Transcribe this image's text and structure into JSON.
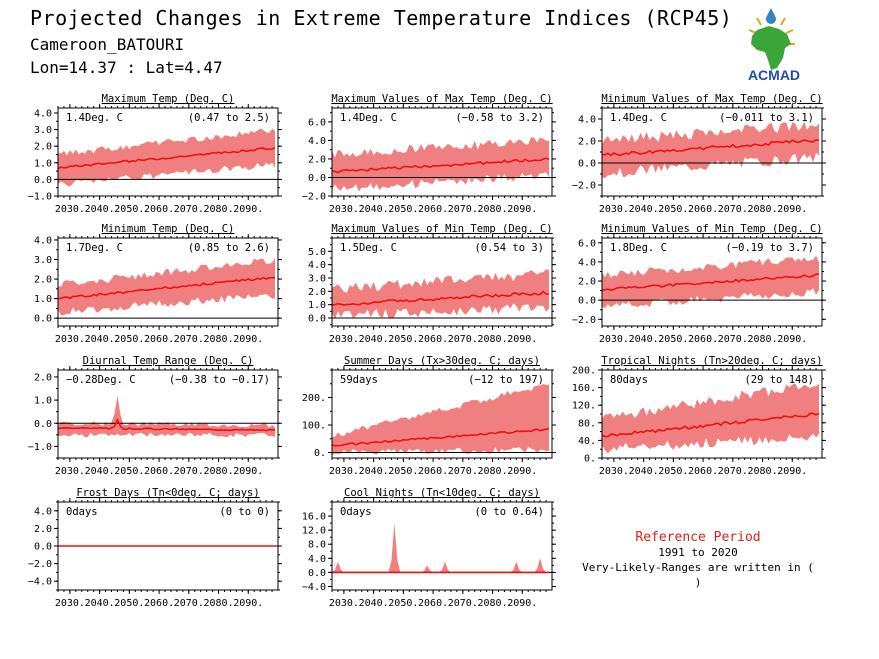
{
  "header": {
    "title": "Projected Changes in Extreme Temperature Indices (RCP45)",
    "location": "Cameroon_BATOURI",
    "coords": "Lon=14.37 : Lat=4.47"
  },
  "logo": {
    "text": "ACMAD",
    "icon": "africa-map-sun-icon"
  },
  "reference": {
    "title": "Reference Period",
    "period": "1991 to 2020",
    "note": "Very-Likely-Ranges are written in ( )"
  },
  "colors": {
    "line": "#ee1111",
    "band": "#f08080",
    "axis": "#000000",
    "accent": "#e0201a"
  },
  "chart_data": [
    {
      "type": "area",
      "title": "Maximum Temp (Deg. C)",
      "mean_label": "1.4Deg. C",
      "range_label": "(0.47 to 2.5)",
      "x_ticks": [
        "2030.",
        "2040.",
        "2050.",
        "2060.",
        "2070.",
        "2080.",
        "2090."
      ],
      "xlim": [
        2026,
        2100
      ],
      "ylim": [
        -1.0,
        4.3
      ],
      "y_ticks": [
        -1.0,
        0.0,
        1.0,
        2.0,
        3.0,
        4.0
      ],
      "y_tick_labels": [
        "−1.0",
        "0.0",
        "1.0",
        "2.0",
        "3.0",
        "4.0"
      ],
      "mean_start": 0.7,
      "mean_end": 1.9,
      "lower_start": -0.3,
      "lower_end": 0.9,
      "upper_start": 1.5,
      "upper_end": 3.0,
      "noise": 0.2
    },
    {
      "type": "area",
      "title": "Maximum Values of Max Temp (Deg. C)",
      "mean_label": "1.4Deg. C",
      "range_label": "(−0.58 to 3.2)",
      "x_ticks": [
        "2030.",
        "2040.",
        "2050.",
        "2060.",
        "2070.",
        "2080.",
        "2090."
      ],
      "xlim": [
        2026,
        2100
      ],
      "ylim": [
        -2.0,
        7.5
      ],
      "y_ticks": [
        -2.0,
        0.0,
        2.0,
        4.0,
        6.0
      ],
      "y_tick_labels": [
        "−2.0",
        "0.0",
        "2.0",
        "4.0",
        "6.0"
      ],
      "mean_start": 0.6,
      "mean_end": 2.0,
      "lower_start": -1.2,
      "lower_end": 0.2,
      "upper_start": 2.5,
      "upper_end": 4.0,
      "noise": 0.5
    },
    {
      "type": "area",
      "title": "Minimum Values of Max Temp (Deg. C)",
      "mean_label": "1.4Deg. C",
      "range_label": "(−0.011 to 3.1)",
      "x_ticks": [
        "2030.",
        "2040.",
        "2050.",
        "2060.",
        "2070.",
        "2080.",
        "2090."
      ],
      "xlim": [
        2026,
        2100
      ],
      "ylim": [
        -3.0,
        5.0
      ],
      "y_ticks": [
        -2.0,
        0.0,
        2.0,
        4.0
      ],
      "y_tick_labels": [
        "−2.0",
        "0.0",
        "2.0",
        "4.0"
      ],
      "mean_start": 0.7,
      "mean_end": 2.1,
      "lower_start": -0.9,
      "lower_end": 0.5,
      "upper_start": 2.0,
      "upper_end": 3.5,
      "noise": 0.5
    },
    {
      "type": "area",
      "title": "Minimum Temp (Deg. C)",
      "mean_label": "1.7Deg. C",
      "range_label": "(0.85 to 2.6)",
      "x_ticks": [
        "2030.",
        "2040.",
        "2050.",
        "2060.",
        "2070.",
        "2080.",
        "2090."
      ],
      "xlim": [
        2026,
        2100
      ],
      "ylim": [
        -0.4,
        4.1
      ],
      "y_ticks": [
        0.0,
        1.0,
        2.0,
        3.0,
        4.0
      ],
      "y_tick_labels": [
        "0.0",
        "1.0",
        "2.0",
        "3.0",
        "4.0"
      ],
      "mean_start": 1.0,
      "mean_end": 2.1,
      "lower_start": 0.3,
      "lower_end": 1.2,
      "upper_start": 1.7,
      "upper_end": 3.0,
      "noise": 0.2
    },
    {
      "type": "area",
      "title": "Maximum Values of Min Temp (Deg. C)",
      "mean_label": "1.5Deg. C",
      "range_label": "(0.54 to 3)",
      "x_ticks": [
        "2030.",
        "2040.",
        "2050.",
        "2060.",
        "2070.",
        "2080.",
        "2090."
      ],
      "xlim": [
        2026,
        2100
      ],
      "ylim": [
        -0.6,
        6.0
      ],
      "y_ticks": [
        0.0,
        1.0,
        2.0,
        3.0,
        4.0,
        5.0
      ],
      "y_tick_labels": [
        "0.0",
        "1.0",
        "2.0",
        "3.0",
        "4.0",
        "5.0"
      ],
      "mean_start": 1.0,
      "mean_end": 1.9,
      "lower_start": 0.2,
      "lower_end": 0.8,
      "upper_start": 2.2,
      "upper_end": 3.3,
      "noise": 0.4
    },
    {
      "type": "area",
      "title": "Minimum Values of Min Temp (Deg. C)",
      "mean_label": "1.8Deg. C",
      "range_label": "(−0.19 to 3.7)",
      "x_ticks": [
        "2030.",
        "2040.",
        "2050.",
        "2060.",
        "2070.",
        "2080.",
        "2090."
      ],
      "xlim": [
        2026,
        2100
      ],
      "ylim": [
        -2.7,
        6.5
      ],
      "y_ticks": [
        -2.0,
        0.0,
        2.0,
        4.0,
        6.0
      ],
      "y_tick_labels": [
        "−2.0",
        "0.0",
        "2.0",
        "4.0",
        "6.0"
      ],
      "mean_start": 1.1,
      "mean_end": 2.6,
      "lower_start": -0.6,
      "lower_end": 0.9,
      "upper_start": 2.6,
      "upper_end": 4.4,
      "noise": 0.45
    },
    {
      "type": "area",
      "title": "Diurnal Temp Range (Deg. C)",
      "mean_label": "−0.28Deg. C",
      "range_label": "(−0.38 to −0.17)",
      "x_ticks": [
        "2030.",
        "2040.",
        "2050.",
        "2060.",
        "2070.",
        "2080.",
        "2090."
      ],
      "xlim": [
        2026,
        2100
      ],
      "ylim": [
        -1.5,
        2.3
      ],
      "y_ticks": [
        -1.0,
        0.0,
        1.0,
        2.0
      ],
      "y_tick_labels": [
        "−1.0",
        "0.0",
        "1.0",
        "2.0"
      ],
      "mean_start": -0.2,
      "mean_end": -0.3,
      "lower_start": -0.5,
      "lower_end": -0.5,
      "upper_start": 0.0,
      "upper_end": -0.1,
      "noise": 0.1,
      "spike_year": 2046,
      "spike_value": 1.2
    },
    {
      "type": "area",
      "title": "Summer Days (Tx>30deg. C; days)",
      "mean_label": "59days",
      "range_label": "(−12 to 197)",
      "x_ticks": [
        "2030.",
        "2040.",
        "2050.",
        "2060.",
        "2070.",
        "2080.",
        "2090."
      ],
      "xlim": [
        2026,
        2100
      ],
      "ylim": [
        -20,
        300
      ],
      "y_ticks": [
        0,
        100,
        200
      ],
      "y_tick_labels": [
        "0.",
        "100.",
        "200."
      ],
      "mean_start": 25,
      "mean_end": 85,
      "lower_start": 0,
      "lower_end": 10,
      "upper_start": 60,
      "upper_end": 250,
      "noise": 12
    },
    {
      "type": "area",
      "title": "Tropical Nights (Tn>20deg. C; days)",
      "mean_label": "80days",
      "range_label": "(29 to 148)",
      "x_ticks": [
        "2030.",
        "2040.",
        "2050.",
        "2060.",
        "2070.",
        "2080.",
        "2090."
      ],
      "xlim": [
        2026,
        2100
      ],
      "ylim": [
        0,
        200
      ],
      "y_ticks": [
        0,
        40,
        80,
        120,
        160,
        200
      ],
      "y_tick_labels": [
        "0.",
        "40.",
        "80.",
        "120.",
        "160.",
        "200."
      ],
      "mean_start": 50,
      "mean_end": 100,
      "lower_start": 20,
      "lower_end": 50,
      "upper_start": 90,
      "upper_end": 170,
      "noise": 12
    },
    {
      "type": "area",
      "title": "Frost Days (Tn<0deg. C; days)",
      "mean_label": "0days",
      "range_label": "(0 to 0)",
      "x_ticks": [
        "2030.",
        "2040.",
        "2050.",
        "2060.",
        "2070.",
        "2080.",
        "2090."
      ],
      "xlim": [
        2026,
        2100
      ],
      "ylim": [
        -5.0,
        5.0
      ],
      "y_ticks": [
        -4.0,
        -2.0,
        0.0,
        2.0,
        4.0
      ],
      "y_tick_labels": [
        "−4.0",
        "−2.0",
        "0.0",
        "2.0",
        "4.0"
      ],
      "mean_start": 0,
      "mean_end": 0,
      "lower_start": 0,
      "lower_end": 0,
      "upper_start": 0,
      "upper_end": 0,
      "noise": 0
    },
    {
      "type": "area",
      "title": "Cool Nights (Tn<10deg. C; days)",
      "mean_label": "0days",
      "range_label": "(0 to 0.64)",
      "x_ticks": [
        "2030.",
        "2040.",
        "2050.",
        "2060.",
        "2070.",
        "2080.",
        "2090."
      ],
      "xlim": [
        2026,
        2100
      ],
      "ylim": [
        -5.0,
        20.0
      ],
      "y_ticks": [
        -4.0,
        0.0,
        4.0,
        8.0,
        12.0,
        16.0
      ],
      "y_tick_labels": [
        "−4.0",
        "0.0",
        "4.0",
        "8.0",
        "12.0",
        "16.0"
      ],
      "mean_start": 0,
      "mean_end": 0,
      "lower_start": 0,
      "lower_end": 0,
      "upper_start": 0,
      "upper_end": 0,
      "noise": 0,
      "peaks": [
        [
          2028,
          3
        ],
        [
          2047,
          14
        ],
        [
          2058,
          2
        ],
        [
          2064,
          3
        ],
        [
          2088,
          3
        ],
        [
          2096,
          4
        ]
      ]
    }
  ]
}
